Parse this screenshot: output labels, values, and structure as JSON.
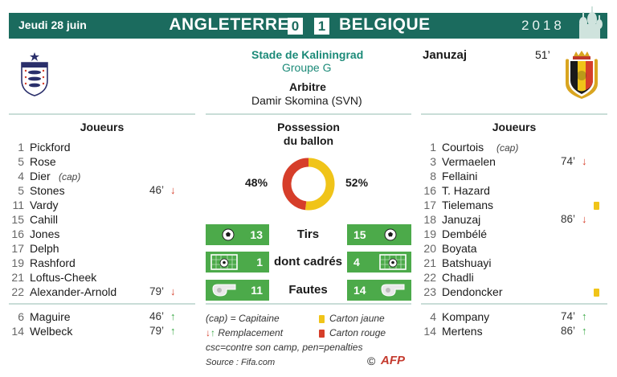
{
  "header": {
    "date": "Jeudi 28 juin",
    "home_team": "ANGLETERRE",
    "home_score": "0",
    "away_score": "1",
    "away_team": "BELGIQUE",
    "year": "2018"
  },
  "match": {
    "stadium": "Stade de Kaliningrad",
    "group": "Groupe G",
    "referee_label": "Arbitre",
    "referee": "Damir Skomina (SVN)",
    "scorer_name": "Januzaj",
    "scorer_minute": "51’"
  },
  "home": {
    "players_title": "Joueurs",
    "starters": [
      {
        "num": "1",
        "name": "Pickford",
        "cap": "",
        "min": "",
        "sub": ""
      },
      {
        "num": "5",
        "name": "Rose",
        "cap": "",
        "min": "",
        "sub": ""
      },
      {
        "num": "4",
        "name": "Dier",
        "cap": "(cap)",
        "min": "",
        "sub": ""
      },
      {
        "num": "5",
        "name": "Stones",
        "cap": "",
        "min": "46’",
        "sub": "down"
      },
      {
        "num": "11",
        "name": "Vardy",
        "cap": "",
        "min": "",
        "sub": ""
      },
      {
        "num": "15",
        "name": "Cahill",
        "cap": "",
        "min": "",
        "sub": ""
      },
      {
        "num": "16",
        "name": "Jones",
        "cap": "",
        "min": "",
        "sub": ""
      },
      {
        "num": "17",
        "name": "Delph",
        "cap": "",
        "min": "",
        "sub": ""
      },
      {
        "num": "19",
        "name": "Rashford",
        "cap": "",
        "min": "",
        "sub": ""
      },
      {
        "num": "21",
        "name": "Loftus-Cheek",
        "cap": "",
        "min": "",
        "sub": ""
      },
      {
        "num": "22",
        "name": "Alexander-Arnold",
        "cap": "",
        "min": "79’",
        "sub": "down"
      }
    ],
    "subs": [
      {
        "num": "6",
        "name": "Maguire",
        "min": "46’",
        "sub": "up"
      },
      {
        "num": "14",
        "name": "Welbeck",
        "min": "79’",
        "sub": "up"
      }
    ]
  },
  "away": {
    "players_title": "Joueurs",
    "starters": [
      {
        "num": "1",
        "name": "Courtois",
        "cap": "(cap)",
        "min": "",
        "sub": "",
        "card": ""
      },
      {
        "num": "3",
        "name": "Vermaelen",
        "cap": "",
        "min": "74’",
        "sub": "down",
        "card": ""
      },
      {
        "num": "8",
        "name": "Fellaini",
        "cap": "",
        "min": "",
        "sub": "",
        "card": ""
      },
      {
        "num": "16",
        "name": "T. Hazard",
        "cap": "",
        "min": "",
        "sub": "",
        "card": ""
      },
      {
        "num": "17",
        "name": "Tielemans",
        "cap": "",
        "min": "",
        "sub": "",
        "card": "yellow"
      },
      {
        "num": "18",
        "name": "Januzaj",
        "cap": "",
        "min": "86’",
        "sub": "down",
        "card": ""
      },
      {
        "num": "19",
        "name": "Dembélé",
        "cap": "",
        "min": "",
        "sub": "",
        "card": ""
      },
      {
        "num": "20",
        "name": "Boyata",
        "cap": "",
        "min": "",
        "sub": "",
        "card": ""
      },
      {
        "num": "21",
        "name": "Batshuayi",
        "cap": "",
        "min": "",
        "sub": "",
        "card": ""
      },
      {
        "num": "22",
        "name": "Chadli",
        "cap": "",
        "min": "",
        "sub": "",
        "card": ""
      },
      {
        "num": "23",
        "name": "Dendoncker",
        "cap": "",
        "min": "",
        "sub": "",
        "card": "yellow"
      }
    ],
    "subs": [
      {
        "num": "4",
        "name": "Kompany",
        "min": "74’",
        "sub": "up"
      },
      {
        "num": "14",
        "name": "Mertens",
        "min": "86’",
        "sub": "up"
      }
    ]
  },
  "possession": {
    "title_line1": "Possession",
    "title_line2": "du ballon",
    "home_pct_label": "48%",
    "away_pct_label": "52%",
    "home_pct": 48,
    "away_pct": 52,
    "home_color": "#d63e2a",
    "away_color": "#f0c419"
  },
  "stats": [
    {
      "label": "Tirs",
      "home": "13",
      "away": "15",
      "icon": "ball-icon"
    },
    {
      "label": "dont cadrés",
      "home": "1",
      "away": "4",
      "icon": "goal-icon"
    },
    {
      "label": "Fautes",
      "home": "11",
      "away": "14",
      "icon": "whistle-icon"
    }
  ],
  "legend": {
    "cap": "(cap) = Capitaine",
    "sub": "Remplacement",
    "yellow": "Carton jaune",
    "red": "Carton rouge",
    "csc": "csc=contre son camp, pen=penalties",
    "source": "Source : Fifa.com",
    "credit": "©",
    "afp": "AFP"
  },
  "colors": {
    "header": "#1b6b5e",
    "stat_green": "#4caa4a",
    "sub_down": "#d63e2a",
    "sub_up": "#39a845",
    "yellow_card": "#f0c419",
    "red_card": "#d63e2a"
  }
}
